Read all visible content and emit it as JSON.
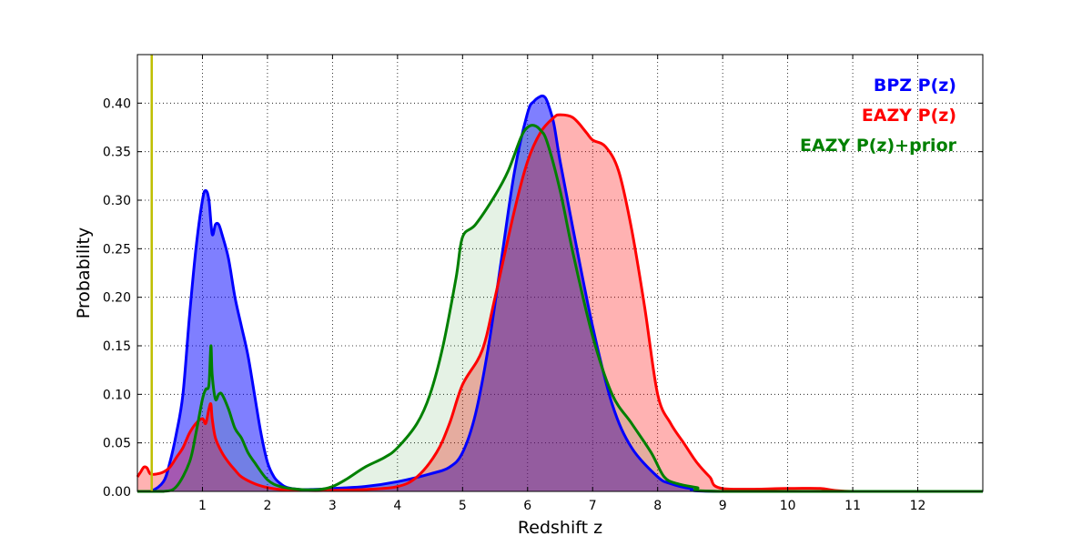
{
  "chart_data": {
    "type": "area",
    "title": "",
    "xlabel": "Redshift z",
    "ylabel": "Probability",
    "xlim": [
      0,
      13
    ],
    "ylim": [
      0,
      0.45
    ],
    "xticks": [
      1,
      2,
      3,
      4,
      5,
      6,
      7,
      8,
      9,
      10,
      11,
      12
    ],
    "xtick_labels": [
      "1",
      "2",
      "3",
      "4",
      "5",
      "6",
      "7",
      "8",
      "9",
      "10",
      "11",
      "12"
    ],
    "yticks": [
      0,
      0.05,
      0.1,
      0.15,
      0.2,
      0.25,
      0.3,
      0.35,
      0.4
    ],
    "ytick_labels": [
      "0.00",
      "0.05",
      "0.10",
      "0.15",
      "0.20",
      "0.25",
      "0.30",
      "0.35",
      "0.40"
    ],
    "grid": true,
    "legend_position": "top-right",
    "reference_line": {
      "x": 0.22,
      "color": "#bfbf00"
    },
    "series": [
      {
        "name": "BPZ P(z)",
        "color": "#0000ff",
        "fill": "#0000ff",
        "fill_opacity": 0.5,
        "x": [
          0,
          0.2,
          0.4,
          0.5,
          0.6,
          0.7,
          0.8,
          0.9,
          1.0,
          1.05,
          1.1,
          1.15,
          1.2,
          1.25,
          1.3,
          1.4,
          1.5,
          1.6,
          1.7,
          1.8,
          1.9,
          2.0,
          2.1,
          2.2,
          2.3,
          2.5,
          2.7,
          3.0,
          3.5,
          4.0,
          4.5,
          4.8,
          5.0,
          5.2,
          5.4,
          5.6,
          5.8,
          6.0,
          6.1,
          6.2,
          6.25,
          6.3,
          6.4,
          6.5,
          6.7,
          7.0,
          7.3,
          7.6,
          8.0,
          8.2,
          8.5,
          9.0,
          13.0
        ],
        "y": [
          0.0,
          0.0,
          0.01,
          0.03,
          0.06,
          0.1,
          0.18,
          0.25,
          0.3,
          0.31,
          0.3,
          0.265,
          0.275,
          0.275,
          0.265,
          0.24,
          0.2,
          0.17,
          0.14,
          0.1,
          0.06,
          0.03,
          0.015,
          0.008,
          0.004,
          0.002,
          0.002,
          0.003,
          0.005,
          0.01,
          0.018,
          0.025,
          0.04,
          0.08,
          0.15,
          0.24,
          0.33,
          0.39,
          0.402,
          0.407,
          0.407,
          0.402,
          0.38,
          0.34,
          0.27,
          0.17,
          0.09,
          0.045,
          0.015,
          0.008,
          0.003,
          0.0,
          0.0
        ]
      },
      {
        "name": "EAZY P(z)",
        "color": "#ff0000",
        "fill": "#ff0000",
        "fill_opacity": 0.3,
        "x": [
          0,
          0.05,
          0.1,
          0.15,
          0.2,
          0.3,
          0.4,
          0.5,
          0.6,
          0.7,
          0.8,
          0.9,
          1.0,
          1.05,
          1.1,
          1.13,
          1.15,
          1.2,
          1.3,
          1.4,
          1.5,
          1.6,
          1.8,
          2.0,
          2.2,
          2.5,
          3.0,
          3.5,
          4.0,
          4.3,
          4.6,
          4.8,
          5.0,
          5.3,
          5.5,
          5.8,
          6.0,
          6.2,
          6.4,
          6.5,
          6.7,
          6.9,
          7.0,
          7.2,
          7.4,
          7.6,
          7.8,
          8.0,
          8.2,
          8.4,
          8.6,
          8.8,
          9.0,
          10.0,
          10.5,
          11.0,
          13.0
        ],
        "y": [
          0.015,
          0.02,
          0.025,
          0.024,
          0.018,
          0.018,
          0.02,
          0.025,
          0.035,
          0.045,
          0.06,
          0.07,
          0.075,
          0.07,
          0.085,
          0.09,
          0.075,
          0.055,
          0.04,
          0.03,
          0.022,
          0.015,
          0.008,
          0.004,
          0.002,
          0.001,
          0.001,
          0.002,
          0.005,
          0.015,
          0.04,
          0.07,
          0.11,
          0.145,
          0.2,
          0.29,
          0.34,
          0.37,
          0.385,
          0.388,
          0.385,
          0.37,
          0.362,
          0.355,
          0.33,
          0.27,
          0.19,
          0.1,
          0.07,
          0.05,
          0.03,
          0.015,
          0.003,
          0.003,
          0.003,
          0.0,
          0.0
        ]
      },
      {
        "name": "EAZY P(z)+prior",
        "color": "#008000",
        "fill": "#008000",
        "fill_opacity": 0.1,
        "x": [
          0,
          0.4,
          0.6,
          0.8,
          0.9,
          1.0,
          1.05,
          1.1,
          1.13,
          1.15,
          1.2,
          1.25,
          1.3,
          1.4,
          1.5,
          1.6,
          1.7,
          1.8,
          2.0,
          2.2,
          2.5,
          2.8,
          3.0,
          3.2,
          3.5,
          3.8,
          4.0,
          4.3,
          4.5,
          4.7,
          4.9,
          5.0,
          5.2,
          5.5,
          5.7,
          5.9,
          6.0,
          6.1,
          6.2,
          6.3,
          6.5,
          6.7,
          7.0,
          7.3,
          7.6,
          7.9,
          8.1,
          8.3,
          8.6,
          9.0,
          13.0
        ],
        "y": [
          0.0,
          0.0,
          0.005,
          0.03,
          0.06,
          0.095,
          0.105,
          0.11,
          0.15,
          0.12,
          0.095,
          0.1,
          0.1,
          0.085,
          0.065,
          0.055,
          0.04,
          0.03,
          0.012,
          0.005,
          0.002,
          0.002,
          0.005,
          0.012,
          0.025,
          0.035,
          0.045,
          0.07,
          0.1,
          0.15,
          0.22,
          0.262,
          0.275,
          0.305,
          0.33,
          0.365,
          0.375,
          0.377,
          0.372,
          0.36,
          0.31,
          0.245,
          0.16,
          0.1,
          0.07,
          0.04,
          0.015,
          0.008,
          0.004,
          0.0,
          0.0
        ]
      }
    ]
  }
}
